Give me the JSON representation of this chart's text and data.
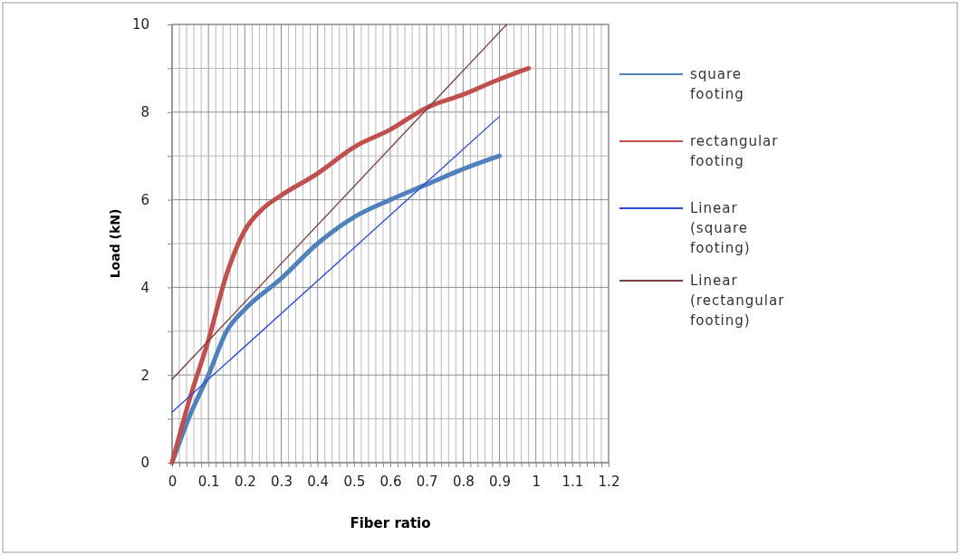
{
  "chart_data": {
    "type": "line",
    "xlabel": "Fiber ratio",
    "ylabel": "Load (kN)",
    "xlim": [
      0,
      1.2
    ],
    "ylim": [
      0,
      10
    ],
    "xticks": [
      0,
      {
        "value": 0.02,
        "label": null
      },
      {
        "value": 0.04,
        "label": null
      },
      {
        "value": 0.06,
        "label": null
      },
      {
        "value": 0.08,
        "label": null
      },
      0.1,
      {
        "value": 0.12,
        "label": null
      },
      {
        "value": 0.14,
        "label": null
      },
      {
        "value": 0.16,
        "label": null
      },
      {
        "value": 0.18,
        "label": null
      },
      0.2,
      {
        "value": 0.22,
        "label": null
      },
      {
        "value": 0.24,
        "label": null
      },
      {
        "value": 0.26,
        "label": null
      },
      {
        "value": 0.28,
        "label": null
      },
      0.3,
      {
        "value": 0.32,
        "label": null
      },
      {
        "value": 0.34,
        "label": null
      },
      {
        "value": 0.36,
        "label": null
      },
      {
        "value": 0.38,
        "label": null
      },
      0.4,
      {
        "value": 0.42,
        "label": null
      },
      {
        "value": 0.44,
        "label": null
      },
      {
        "value": 0.46,
        "label": null
      },
      {
        "value": 0.48,
        "label": null
      },
      0.5,
      {
        "value": 0.52,
        "label": null
      },
      {
        "value": 0.54,
        "label": null
      },
      {
        "value": 0.56,
        "label": null
      },
      {
        "value": 0.58,
        "label": null
      },
      0.6,
      {
        "value": 0.62,
        "label": null
      },
      {
        "value": 0.64,
        "label": null
      },
      {
        "value": 0.66,
        "label": null
      },
      {
        "value": 0.68,
        "label": null
      },
      0.7,
      {
        "value": 0.72,
        "label": null
      },
      {
        "value": 0.74,
        "label": null
      },
      {
        "value": 0.76,
        "label": null
      },
      {
        "value": 0.78,
        "label": null
      },
      0.8,
      {
        "value": 0.82,
        "label": null
      },
      {
        "value": 0.84,
        "label": null
      },
      {
        "value": 0.86,
        "label": null
      },
      {
        "value": 0.88,
        "label": null
      },
      0.9,
      {
        "value": 0.92,
        "label": null
      },
      {
        "value": 0.94,
        "label": null
      },
      {
        "value": 0.96,
        "label": null
      },
      {
        "value": 0.98,
        "label": null
      },
      1,
      {
        "value": 1.02,
        "label": null
      },
      {
        "value": 1.04,
        "label": null
      },
      {
        "value": 1.06,
        "label": null
      },
      {
        "value": 1.08,
        "label": null
      },
      1.1,
      {
        "value": 1.12,
        "label": null
      },
      {
        "value": 1.14,
        "label": null
      },
      {
        "value": 1.16,
        "label": null
      },
      {
        "value": 1.18,
        "label": null
      },
      1.2
    ],
    "yticks": [
      0,
      {
        "value": 1,
        "label": null
      },
      2,
      {
        "value": 3,
        "label": null
      },
      4,
      {
        "value": 5,
        "label": null
      },
      6,
      {
        "value": 7,
        "label": null
      },
      8,
      {
        "value": 9,
        "label": null
      },
      10
    ],
    "grid": true,
    "legend": "right",
    "line_style": "solid",
    "marker": "none",
    "series": [
      {
        "name": "square footing",
        "color": "#4f81bd",
        "x": [
          0,
          0.05,
          0.1,
          0.15,
          0.2,
          0.3,
          0.4,
          0.5,
          0.6,
          0.7,
          0.8,
          0.9
        ],
        "values": [
          0,
          1.1,
          2.0,
          3.0,
          3.5,
          4.2,
          5.0,
          5.6,
          6.0,
          6.35,
          6.7,
          7.0
        ]
      },
      {
        "name": "rectangular footing",
        "color": "#c0504d",
        "x": [
          0,
          0.05,
          0.1,
          0.15,
          0.2,
          0.25,
          0.3,
          0.4,
          0.5,
          0.6,
          0.7,
          0.8,
          0.9,
          0.98
        ],
        "values": [
          0,
          1.5,
          2.8,
          4.3,
          5.3,
          5.8,
          6.1,
          6.6,
          7.2,
          7.6,
          8.1,
          8.4,
          8.75,
          9.0
        ]
      },
      {
        "name": "Linear (square footing)",
        "color": "#2a4bd7",
        "type": "line",
        "x": [
          0,
          0.9
        ],
        "values": [
          1.15,
          7.9
        ]
      },
      {
        "name": "Linear (rectangular footing)",
        "color": "#7b3f3f",
        "type": "line",
        "x": [
          0,
          0.92
        ],
        "values": [
          1.9,
          10
        ]
      }
    ]
  }
}
